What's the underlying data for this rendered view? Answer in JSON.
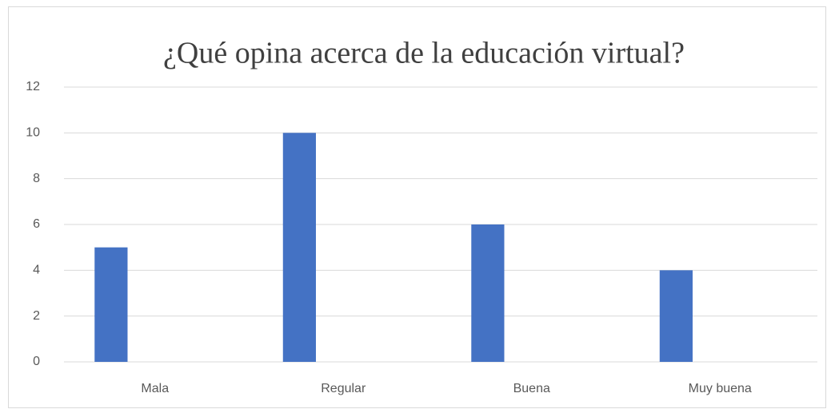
{
  "chart_data": {
    "type": "bar",
    "title": "¿Qué opina acerca de la educación virtual?",
    "categories": [
      "Mala",
      "Regular",
      "Buena",
      "Muy buena"
    ],
    "values": [
      5,
      10,
      6,
      4
    ],
    "color": "#4472c4",
    "ylim": [
      0,
      12
    ],
    "yticks": [
      0,
      2,
      4,
      6,
      8,
      10,
      12
    ],
    "grid": true
  }
}
